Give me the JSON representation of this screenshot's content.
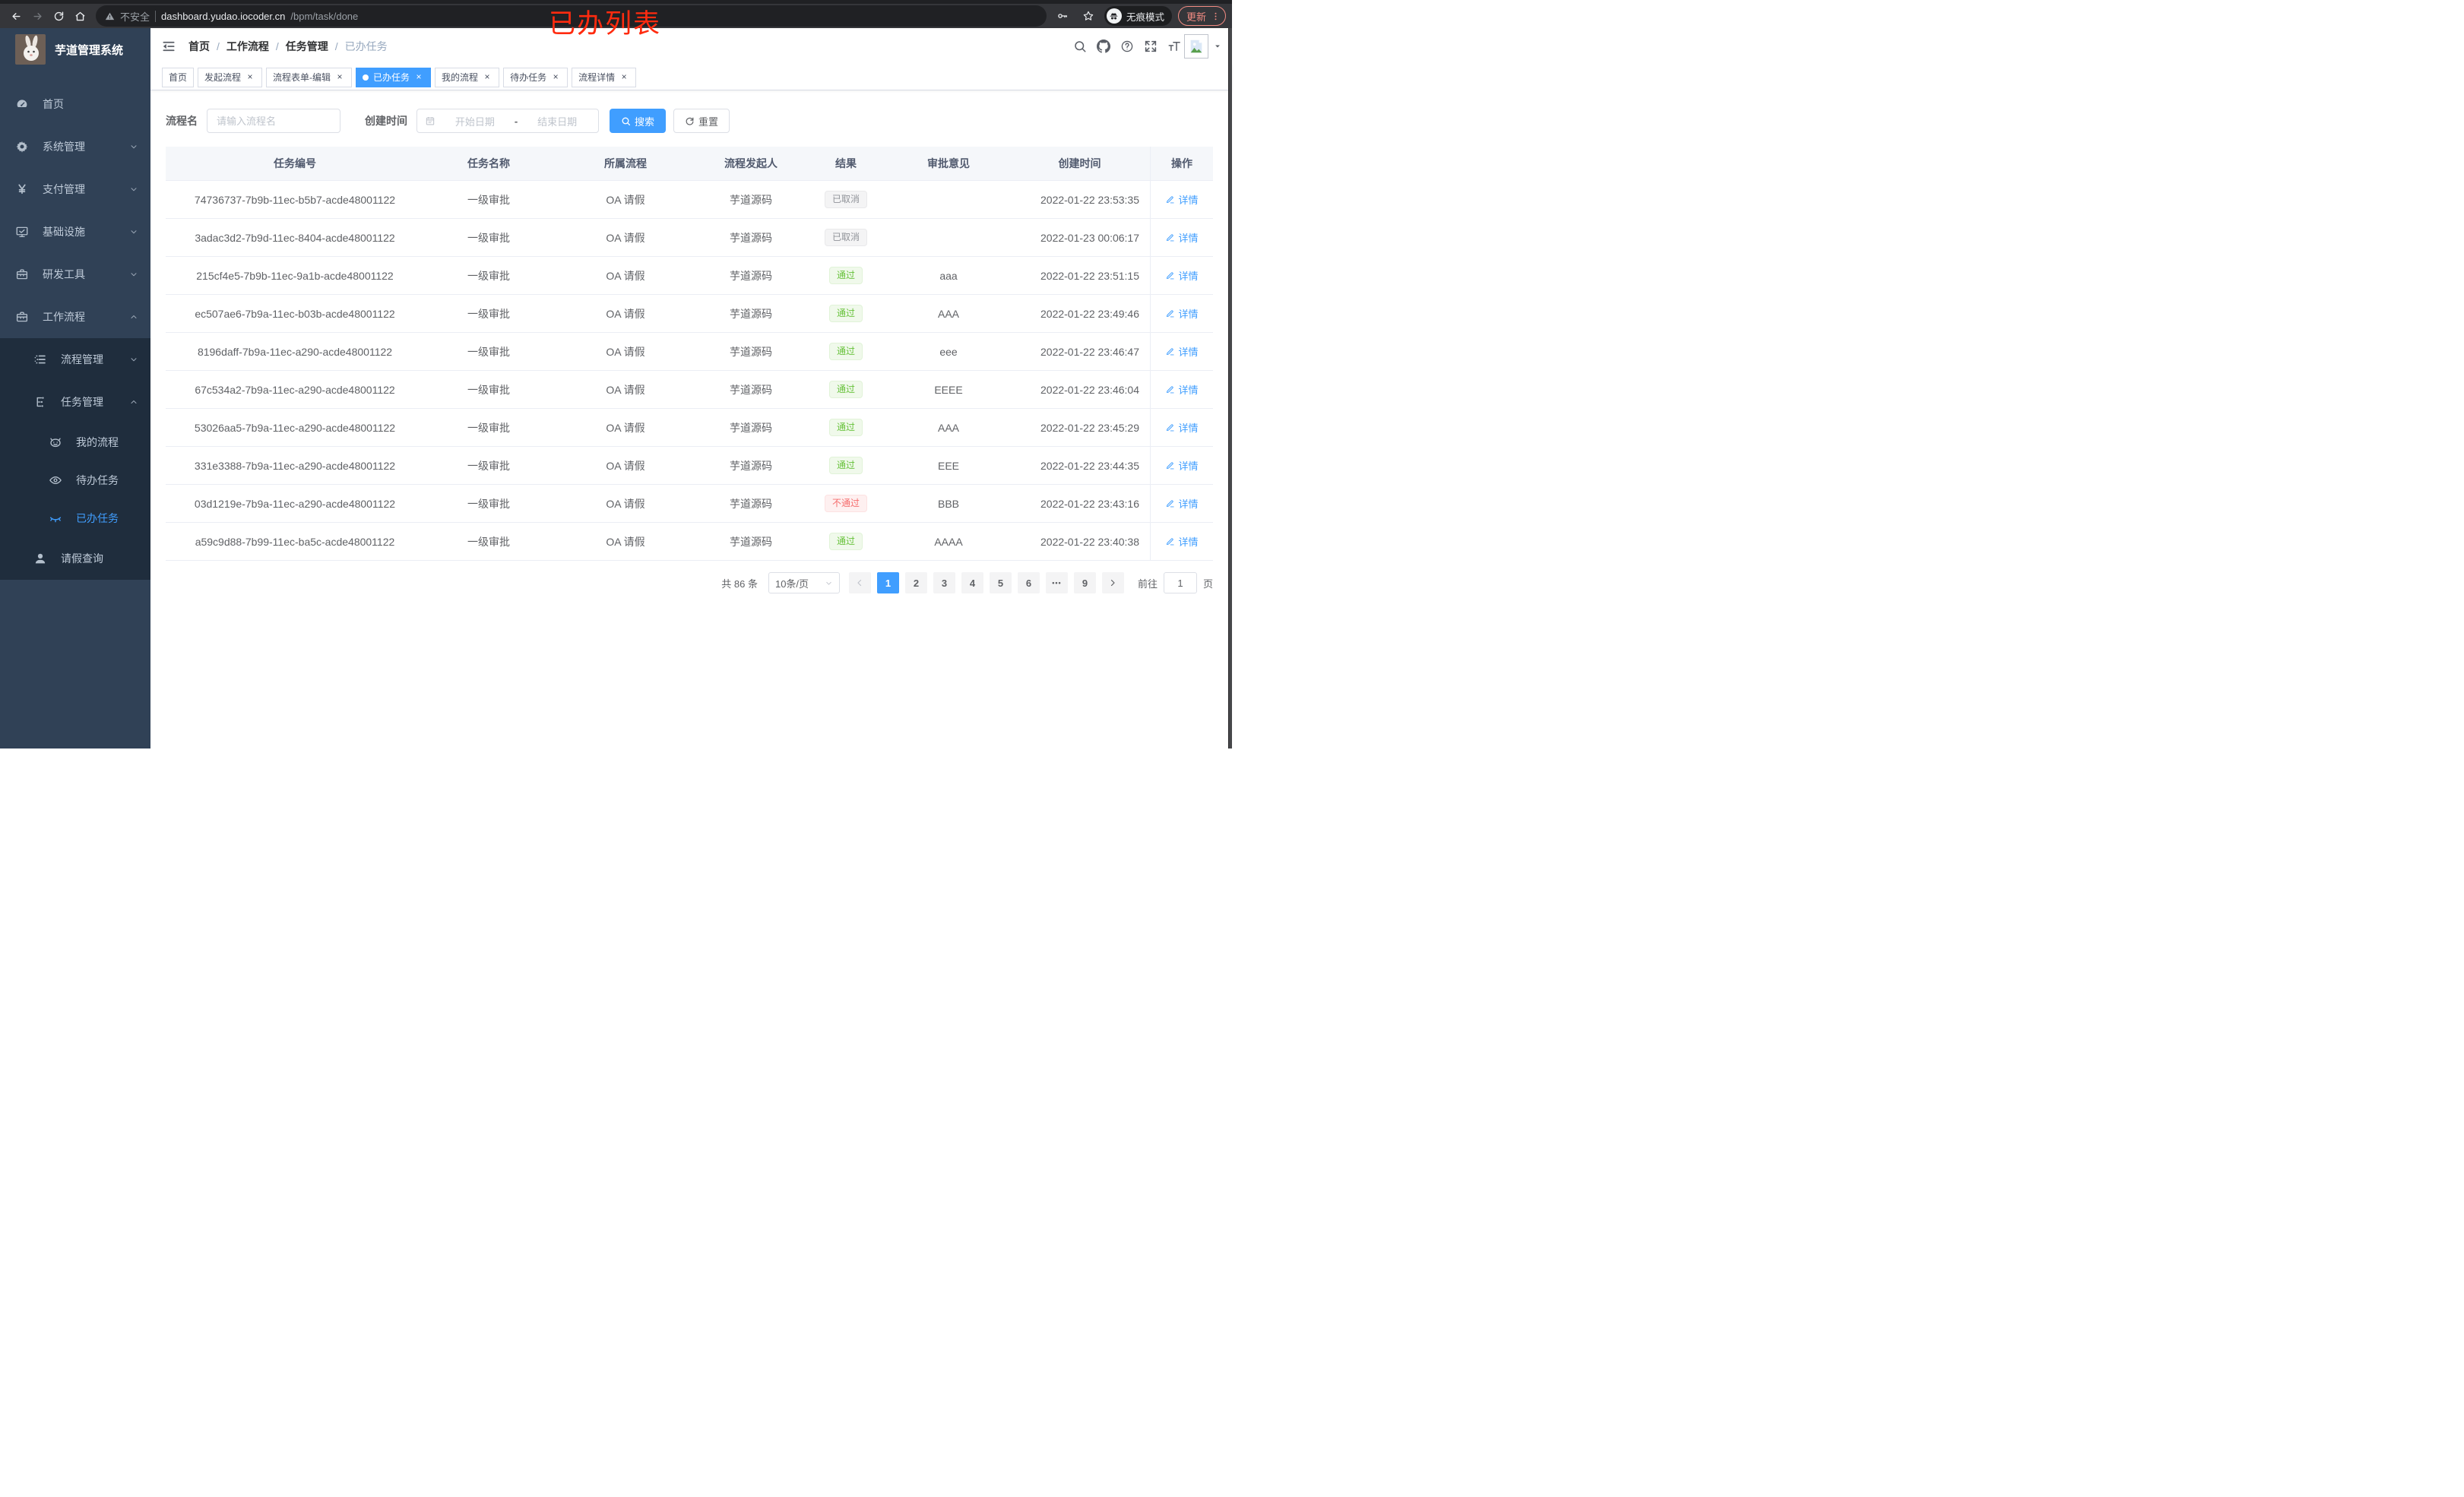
{
  "browser": {
    "security_label": "不安全",
    "url_host": "dashboard.yudao.iocoder.cn",
    "url_path": "/bpm/task/done",
    "incognito_label": "无痕模式",
    "update_label": "更新"
  },
  "annotation": {
    "text": "已办列表",
    "color": "#ff2b0f"
  },
  "sidebar": {
    "title": "芋道管理系统",
    "menu": [
      {
        "label": "首页",
        "icon": "dashboard-icon",
        "level": 1,
        "chevron": "",
        "sub": false,
        "active": false
      },
      {
        "label": "系统管理",
        "icon": "gear-icon",
        "level": 1,
        "chevron": "down",
        "sub": false,
        "active": false
      },
      {
        "label": "支付管理",
        "icon": "yen-icon",
        "level": 1,
        "chevron": "down",
        "sub": false,
        "active": false
      },
      {
        "label": "基础设施",
        "icon": "monitor-icon",
        "level": 1,
        "chevron": "down",
        "sub": false,
        "active": false
      },
      {
        "label": "研发工具",
        "icon": "toolbox-icon",
        "level": 1,
        "chevron": "down",
        "sub": false,
        "active": false
      },
      {
        "label": "工作流程",
        "icon": "briefcase-icon",
        "level": 1,
        "chevron": "up",
        "sub": false,
        "active": false
      },
      {
        "label": "流程管理",
        "icon": "process-list-icon",
        "level": 2,
        "chevron": "down",
        "sub": true,
        "active": false
      },
      {
        "label": "任务管理",
        "icon": "task-tree-icon",
        "level": 2,
        "chevron": "up",
        "sub": true,
        "active": false
      },
      {
        "label": "我的流程",
        "icon": "face-icon",
        "level": 3,
        "chevron": "",
        "sub": true,
        "active": false
      },
      {
        "label": "待办任务",
        "icon": "eye-icon",
        "level": 3,
        "chevron": "",
        "sub": true,
        "active": false
      },
      {
        "label": "已办任务",
        "icon": "eye-closed-icon",
        "level": 3,
        "chevron": "",
        "sub": true,
        "active": true
      },
      {
        "label": "请假查询",
        "icon": "user-icon",
        "level": 2,
        "chevron": "",
        "sub": true,
        "active": false
      }
    ]
  },
  "topbar": {
    "breadcrumb": [
      "首页",
      "工作流程",
      "任务管理",
      "已办任务"
    ],
    "separator": "/",
    "icons": [
      "search-icon",
      "github-icon",
      "help-icon",
      "fullscreen-icon",
      "font-size-icon"
    ]
  },
  "tabs": [
    {
      "label": "首页",
      "closable": false,
      "active": false
    },
    {
      "label": "发起流程",
      "closable": true,
      "active": false
    },
    {
      "label": "流程表单-编辑",
      "closable": true,
      "active": false
    },
    {
      "label": "已办任务",
      "closable": true,
      "active": true
    },
    {
      "label": "我的流程",
      "closable": true,
      "active": false
    },
    {
      "label": "待办任务",
      "closable": true,
      "active": false
    },
    {
      "label": "流程详情",
      "closable": true,
      "active": false
    }
  ],
  "filter": {
    "name_label": "流程名",
    "name_placeholder": "请输入流程名",
    "time_label": "创建时间",
    "start_placeholder": "开始日期",
    "range_separator": "-",
    "end_placeholder": "结束日期",
    "search_label": "搜索",
    "reset_label": "重置"
  },
  "table": {
    "columns": [
      "任务编号",
      "任务名称",
      "所属流程",
      "流程发起人",
      "结果",
      "审批意见",
      "创建时间",
      "操作"
    ],
    "detail_label": "详情",
    "result_styles": {
      "已取消": "info",
      "通过": "success",
      "不通过": "danger"
    },
    "rows": [
      {
        "id": "74736737-7b9b-11ec-b5b7-acde48001122",
        "name": "一级审批",
        "process": "OA 请假",
        "starter": "芋道源码",
        "result": "已取消",
        "comment": "",
        "time": "2022-01-22 23:53:35"
      },
      {
        "id": "3adac3d2-7b9d-11ec-8404-acde48001122",
        "name": "一级审批",
        "process": "OA 请假",
        "starter": "芋道源码",
        "result": "已取消",
        "comment": "",
        "time": "2022-01-23 00:06:17"
      },
      {
        "id": "215cf4e5-7b9b-11ec-9a1b-acde48001122",
        "name": "一级审批",
        "process": "OA 请假",
        "starter": "芋道源码",
        "result": "通过",
        "comment": "aaa",
        "time": "2022-01-22 23:51:15"
      },
      {
        "id": "ec507ae6-7b9a-11ec-b03b-acde48001122",
        "name": "一级审批",
        "process": "OA 请假",
        "starter": "芋道源码",
        "result": "通过",
        "comment": "AAA",
        "time": "2022-01-22 23:49:46"
      },
      {
        "id": "8196daff-7b9a-11ec-a290-acde48001122",
        "name": "一级审批",
        "process": "OA 请假",
        "starter": "芋道源码",
        "result": "通过",
        "comment": "eee",
        "time": "2022-01-22 23:46:47"
      },
      {
        "id": "67c534a2-7b9a-11ec-a290-acde48001122",
        "name": "一级审批",
        "process": "OA 请假",
        "starter": "芋道源码",
        "result": "通过",
        "comment": "EEEE",
        "time": "2022-01-22 23:46:04"
      },
      {
        "id": "53026aa5-7b9a-11ec-a290-acde48001122",
        "name": "一级审批",
        "process": "OA 请假",
        "starter": "芋道源码",
        "result": "通过",
        "comment": "AAA",
        "time": "2022-01-22 23:45:29"
      },
      {
        "id": "331e3388-7b9a-11ec-a290-acde48001122",
        "name": "一级审批",
        "process": "OA 请假",
        "starter": "芋道源码",
        "result": "通过",
        "comment": "EEE",
        "time": "2022-01-22 23:44:35"
      },
      {
        "id": "03d1219e-7b9a-11ec-a290-acde48001122",
        "name": "一级审批",
        "process": "OA 请假",
        "starter": "芋道源码",
        "result": "不通过",
        "comment": "BBB",
        "time": "2022-01-22 23:43:16"
      },
      {
        "id": "a59c9d88-7b99-11ec-ba5c-acde48001122",
        "name": "一级审批",
        "process": "OA 请假",
        "starter": "芋道源码",
        "result": "通过",
        "comment": "AAAA",
        "time": "2022-01-22 23:40:38"
      }
    ]
  },
  "pagination": {
    "total_text": "共 86 条",
    "page_size": "10条/页",
    "pages": [
      "1",
      "2",
      "3",
      "4",
      "5",
      "6",
      "...",
      "9"
    ],
    "active_page": "1",
    "goto_label": "前往",
    "goto_value": "1",
    "goto_suffix": "页"
  },
  "colors": {
    "accent": "#409eff",
    "sidebar_bg": "#304156",
    "submenu_bg": "#1f2d3d",
    "success_text": "#67c23a",
    "danger_text": "#f56c6c",
    "info_text": "#909399",
    "annotation_red": "#ff2b0f"
  }
}
